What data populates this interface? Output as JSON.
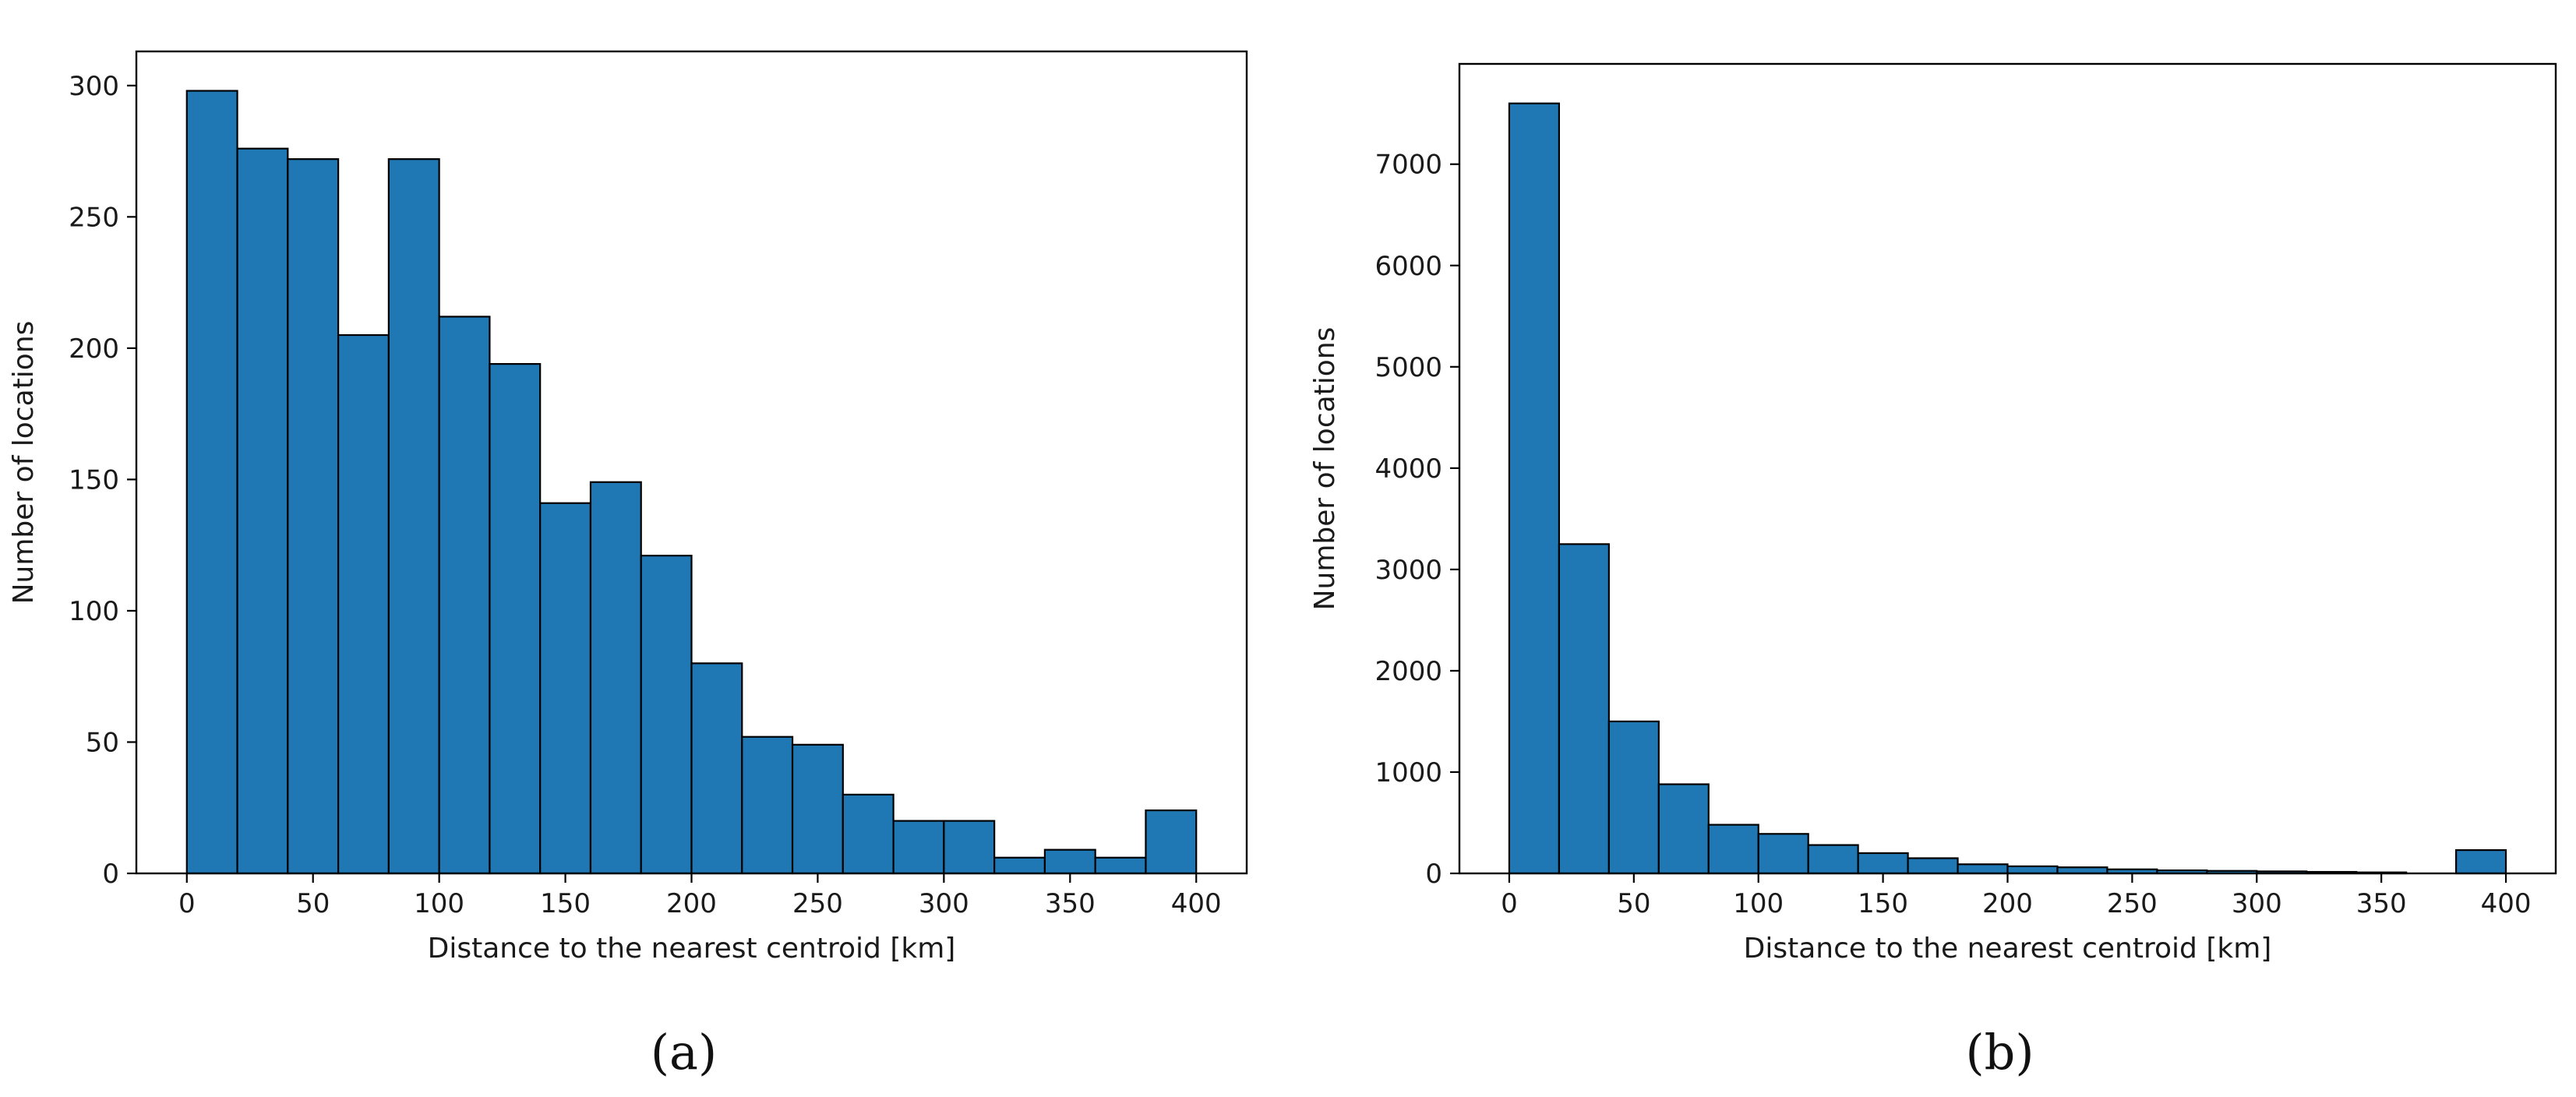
{
  "figure": {
    "bar_color": "#1f77b4",
    "edge_color": "#000000"
  },
  "chart_data": [
    {
      "type": "bar",
      "panel_label": "(a)",
      "title": "",
      "xlabel": "Distance to the nearest centroid [km]",
      "ylabel": "Number of locations",
      "bin_width": 20,
      "bin_starts": [
        0,
        20,
        40,
        60,
        80,
        100,
        120,
        140,
        160,
        180,
        200,
        220,
        240,
        260,
        280,
        300,
        320,
        340,
        360,
        380
      ],
      "values": [
        298,
        276,
        272,
        205,
        272,
        212,
        194,
        141,
        149,
        121,
        80,
        52,
        49,
        30,
        20,
        20,
        6,
        9,
        6,
        24
      ],
      "xlim": [
        -20,
        420
      ],
      "ylim": [
        0,
        313
      ],
      "xticks": [
        0,
        50,
        100,
        150,
        200,
        250,
        300,
        350,
        400
      ],
      "yticks": [
        0,
        50,
        100,
        150,
        200,
        250,
        300
      ],
      "grid": false
    },
    {
      "type": "bar",
      "panel_label": "(b)",
      "title": "",
      "xlabel": "Distance to the nearest centroid [km]",
      "ylabel": "Number of locations",
      "bin_width": 20,
      "bin_starts": [
        0,
        20,
        40,
        60,
        80,
        100,
        120,
        140,
        160,
        180,
        200,
        220,
        240,
        260,
        280,
        300,
        320,
        340,
        360,
        380
      ],
      "values": [
        7600,
        3250,
        1500,
        880,
        480,
        390,
        280,
        200,
        150,
        90,
        70,
        60,
        40,
        30,
        25,
        20,
        15,
        10,
        0,
        230
      ],
      "xlim": [
        -20,
        420
      ],
      "ylim": [
        0,
        7990
      ],
      "xticks": [
        0,
        50,
        100,
        150,
        200,
        250,
        300,
        350,
        400
      ],
      "yticks": [
        0,
        1000,
        2000,
        3000,
        4000,
        5000,
        6000,
        7000
      ],
      "grid": false
    }
  ]
}
